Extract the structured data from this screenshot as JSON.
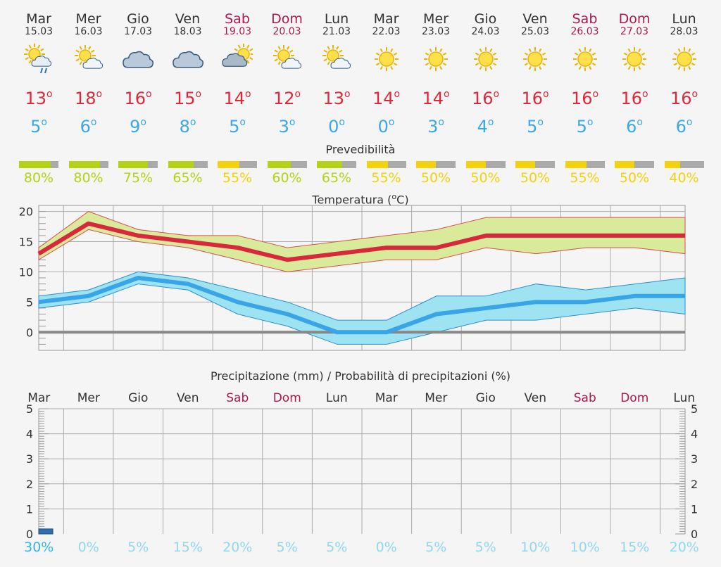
{
  "days": [
    {
      "name": "Mar",
      "date": "15.03",
      "weekend": false,
      "icon": "sun-cloud-rain-icon",
      "tmax": 13,
      "tmin": 5,
      "predictability": "80%",
      "pred_value": 80,
      "pred_color": "#b5d216",
      "precip_prob": "30%",
      "precip_color": "#33b4e8"
    },
    {
      "name": "Mer",
      "date": "16.03",
      "weekend": false,
      "icon": "sun-cloud-icon",
      "tmax": 18,
      "tmin": 6,
      "predictability": "80%",
      "pred_value": 80,
      "pred_color": "#b5d216",
      "precip_prob": "0%",
      "precip_color": "#8fd8f0"
    },
    {
      "name": "Gio",
      "date": "17.03",
      "weekend": false,
      "icon": "cloud-icon",
      "tmax": 16,
      "tmin": 9,
      "predictability": "75%",
      "pred_value": 75,
      "pred_color": "#b5d216",
      "precip_prob": "5%",
      "precip_color": "#8fd8f0"
    },
    {
      "name": "Ven",
      "date": "18.03",
      "weekend": false,
      "icon": "cloud-icon",
      "tmax": 15,
      "tmin": 8,
      "predictability": "65%",
      "pred_value": 65,
      "pred_color": "#b5d216",
      "precip_prob": "15%",
      "precip_color": "#8fd8f0"
    },
    {
      "name": "Sab",
      "date": "19.03",
      "weekend": true,
      "icon": "cloud-sun-icon",
      "tmax": 14,
      "tmin": 5,
      "predictability": "55%",
      "pred_value": 55,
      "pred_color": "#f3d20b",
      "precip_prob": "20%",
      "precip_color": "#8fd8f0"
    },
    {
      "name": "Dom",
      "date": "20.03",
      "weekend": true,
      "icon": "sun-cloud-icon",
      "tmax": 12,
      "tmin": 3,
      "predictability": "60%",
      "pred_value": 60,
      "pred_color": "#b5d216",
      "precip_prob": "5%",
      "precip_color": "#8fd8f0"
    },
    {
      "name": "Lun",
      "date": "21.03",
      "weekend": false,
      "icon": "sun-cloud-icon",
      "tmax": 13,
      "tmin": 0,
      "predictability": "65%",
      "pred_value": 65,
      "pred_color": "#b5d216",
      "precip_prob": "5%",
      "precip_color": "#8fd8f0"
    },
    {
      "name": "Mar",
      "date": "22.03",
      "weekend": false,
      "icon": "sun-icon",
      "tmax": 14,
      "tmin": 0,
      "predictability": "55%",
      "pred_value": 55,
      "pred_color": "#f3d20b",
      "precip_prob": "0%",
      "precip_color": "#8fd8f0"
    },
    {
      "name": "Mer",
      "date": "23.03",
      "weekend": false,
      "icon": "sun-icon",
      "tmax": 14,
      "tmin": 3,
      "predictability": "50%",
      "pred_value": 50,
      "pred_color": "#f3d20b",
      "precip_prob": "5%",
      "precip_color": "#8fd8f0"
    },
    {
      "name": "Gio",
      "date": "24.03",
      "weekend": false,
      "icon": "sun-icon",
      "tmax": 16,
      "tmin": 4,
      "predictability": "50%",
      "pred_value": 50,
      "pred_color": "#f3d20b",
      "precip_prob": "5%",
      "precip_color": "#8fd8f0"
    },
    {
      "name": "Ven",
      "date": "25.03",
      "weekend": false,
      "icon": "sun-icon",
      "tmax": 16,
      "tmin": 5,
      "predictability": "50%",
      "pred_value": 50,
      "pred_color": "#f3d20b",
      "precip_prob": "10%",
      "precip_color": "#8fd8f0"
    },
    {
      "name": "Sab",
      "date": "26.03",
      "weekend": true,
      "icon": "sun-icon",
      "tmax": 16,
      "tmin": 5,
      "predictability": "55%",
      "pred_value": 55,
      "pred_color": "#f3d20b",
      "precip_prob": "10%",
      "precip_color": "#8fd8f0"
    },
    {
      "name": "Dom",
      "date": "27.03",
      "weekend": true,
      "icon": "sun-icon",
      "tmax": 16,
      "tmin": 6,
      "predictability": "50%",
      "pred_value": 50,
      "pred_color": "#f3d20b",
      "precip_prob": "15%",
      "precip_color": "#8fd8f0"
    },
    {
      "name": "Lun",
      "date": "28.03",
      "weekend": false,
      "icon": "sun-icon",
      "tmax": 16,
      "tmin": 6,
      "predictability": "40%",
      "pred_value": 40,
      "pred_color": "#f3d20b",
      "precip_prob": "20%",
      "precip_color": "#8fd8f0"
    }
  ],
  "labels": {
    "degree": "o",
    "predictability_title": "Prevedibilità",
    "temp_title": "Temperatura (",
    "temp_title_unit": "C)",
    "precip_title": "Precipitazione (mm) / Probabilità di precipitazioni (%)"
  },
  "colors": {
    "tmax_line": "#d8283c",
    "tmax_band": "#d9eb9b",
    "tmin_line": "#3aa5e6",
    "tmin_band": "#9ee3f2",
    "weekend": "#b0174f",
    "zero_line": "#888888"
  },
  "chart_data": [
    {
      "type": "line",
      "title": "Temperatura (°C)",
      "categories": [
        "15.03",
        "16.03",
        "17.03",
        "18.03",
        "19.03",
        "20.03",
        "21.03",
        "22.03",
        "23.03",
        "24.03",
        "25.03",
        "26.03",
        "27.03",
        "28.03"
      ],
      "ylim": [
        -3,
        21
      ],
      "yticks": [
        0,
        5,
        10,
        15,
        20
      ],
      "series": [
        {
          "name": "Max",
          "values": [
            13,
            18,
            16,
            15,
            14,
            12,
            13,
            14,
            14,
            16,
            16,
            16,
            16,
            16
          ],
          "band_hi": [
            14,
            20,
            17,
            16,
            16,
            14,
            15,
            16,
            17,
            19,
            19,
            19,
            19,
            19
          ],
          "band_lo": [
            12,
            17,
            15,
            14,
            12,
            10,
            11,
            12,
            12,
            14,
            13,
            14,
            14,
            13
          ]
        },
        {
          "name": "Min",
          "values": [
            5,
            6,
            9,
            8,
            5,
            3,
            0,
            0,
            3,
            4,
            5,
            5,
            6,
            6
          ],
          "band_hi": [
            6,
            7,
            10,
            9,
            7,
            5,
            2,
            2,
            6,
            6,
            8,
            7,
            8,
            9
          ],
          "band_lo": [
            4,
            5,
            8,
            7,
            3,
            1,
            -2,
            -2,
            0,
            2,
            2,
            3,
            4,
            3
          ]
        }
      ]
    },
    {
      "type": "bar",
      "title": "Precipitazione (mm) / Probabilità di precipitazioni (%)",
      "categories": [
        "Mar",
        "Mer",
        "Gio",
        "Ven",
        "Sab",
        "Dom",
        "Lun",
        "Mar",
        "Mer",
        "Gio",
        "Ven",
        "Sab",
        "Dom",
        "Lun"
      ],
      "values": [
        0.2,
        0,
        0,
        0,
        0,
        0,
        0,
        0,
        0,
        0,
        0,
        0,
        0,
        0
      ],
      "probabilities": [
        "30%",
        "0%",
        "5%",
        "15%",
        "20%",
        "5%",
        "5%",
        "0%",
        "5%",
        "5%",
        "10%",
        "10%",
        "15%",
        "20%"
      ],
      "ylim": [
        0,
        5
      ],
      "yticks": [
        0,
        1,
        2,
        3,
        4,
        5
      ]
    }
  ]
}
